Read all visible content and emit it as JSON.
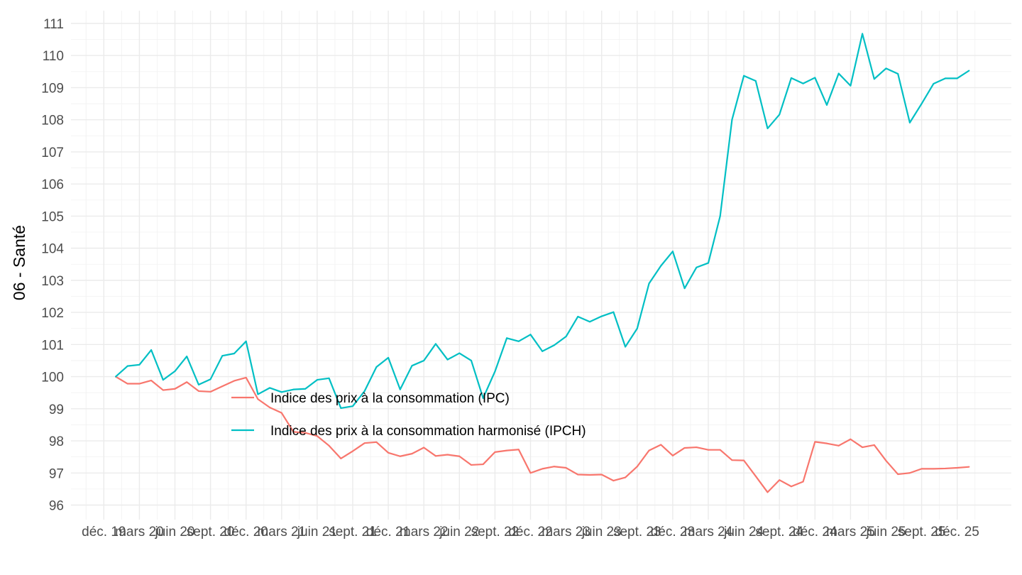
{
  "chart_data": {
    "type": "line",
    "title": "",
    "xlabel": "",
    "ylabel": "06 - Santé",
    "ylim": [
      96,
      111
    ],
    "grid": true,
    "legend_position": "inside-center-left",
    "x_tick_labels": [
      "déc. 19",
      "mars 20",
      "juin 20",
      "sept. 20",
      "déc. 20",
      "mars 21",
      "juin 21",
      "sept. 21",
      "déc. 21",
      "mars 22",
      "juin 22",
      "sept. 22",
      "déc. 22",
      "mars 23",
      "juin 23",
      "sept. 23",
      "déc. 23",
      "mars 24",
      "juin 24",
      "sept. 24",
      "déc. 24",
      "mars 25",
      "juin 25",
      "sept. 25",
      "déc. 25"
    ],
    "y_ticks": [
      96,
      97,
      98,
      99,
      100,
      101,
      102,
      103,
      104,
      105,
      106,
      107,
      108,
      109,
      110,
      111
    ],
    "x_months": [
      "2019-12",
      "2020-01",
      "2020-02",
      "2020-03",
      "2020-04",
      "2020-05",
      "2020-06",
      "2020-07",
      "2020-08",
      "2020-09",
      "2020-10",
      "2020-11",
      "2020-12",
      "2021-01",
      "2021-02",
      "2021-03",
      "2021-04",
      "2021-05",
      "2021-06",
      "2021-07",
      "2021-08",
      "2021-09",
      "2021-10",
      "2021-11",
      "2021-12",
      "2022-01",
      "2022-02",
      "2022-03",
      "2022-04",
      "2022-05",
      "2022-06",
      "2022-07",
      "2022-08",
      "2022-09",
      "2022-10",
      "2022-11",
      "2022-12",
      "2023-01",
      "2023-02",
      "2023-03",
      "2023-04",
      "2023-05",
      "2023-06",
      "2023-07",
      "2023-08",
      "2023-09",
      "2023-10",
      "2023-11",
      "2023-12",
      "2024-01",
      "2024-02",
      "2024-03",
      "2024-04",
      "2024-05",
      "2024-06",
      "2024-07",
      "2024-08",
      "2024-09",
      "2024-10",
      "2024-11",
      "2024-12",
      "2025-01",
      "2025-02",
      "2025-03",
      "2025-04",
      "2025-05",
      "2025-06",
      "2025-07",
      "2025-08",
      "2025-09",
      "2025-10",
      "2025-11",
      "2025-12"
    ],
    "series": [
      {
        "name": "Indice des prix à la consommation (IPC)",
        "color": "#F8766D",
        "values": [
          100.0,
          99.78,
          99.78,
          99.88,
          99.58,
          99.62,
          99.83,
          99.55,
          99.53,
          99.7,
          99.87,
          99.97,
          99.3,
          99.04,
          98.87,
          98.28,
          98.25,
          98.15,
          97.85,
          97.45,
          97.68,
          97.93,
          97.96,
          97.63,
          97.52,
          97.6,
          97.79,
          97.53,
          97.57,
          97.52,
          97.25,
          97.27,
          97.65,
          97.7,
          97.73,
          97.0,
          97.13,
          97.2,
          97.16,
          96.95,
          96.94,
          96.95,
          96.76,
          96.86,
          97.2,
          97.7,
          97.88,
          97.54,
          97.78,
          97.8,
          97.72,
          97.72,
          97.4,
          97.39,
          96.9,
          96.4,
          96.78,
          96.58,
          96.73,
          97.97,
          97.92,
          97.85,
          98.05,
          97.8,
          97.87,
          97.38,
          96.96,
          97.0,
          97.13,
          97.13,
          97.14,
          97.16,
          97.19
        ]
      },
      {
        "name": "Indice des prix à la consommation harmonisé (IPCH)",
        "color": "#00BFC4",
        "values": [
          100.0,
          100.33,
          100.37,
          100.83,
          99.9,
          100.17,
          100.63,
          99.75,
          99.92,
          100.65,
          100.72,
          101.1,
          99.45,
          99.65,
          99.52,
          99.6,
          99.62,
          99.9,
          99.95,
          99.02,
          99.08,
          99.55,
          100.3,
          100.59,
          99.6,
          100.34,
          100.5,
          101.02,
          100.53,
          100.73,
          100.5,
          99.33,
          100.16,
          101.2,
          101.1,
          101.31,
          100.79,
          100.98,
          101.25,
          101.87,
          101.71,
          101.88,
          102.01,
          100.93,
          101.5,
          102.9,
          103.45,
          103.9,
          102.75,
          103.4,
          103.54,
          105.0,
          108.0,
          109.37,
          109.21,
          107.73,
          108.16,
          109.3,
          109.13,
          109.31,
          108.46,
          109.44,
          109.06,
          110.68,
          109.27,
          109.6,
          109.43,
          107.91,
          108.5,
          109.12,
          109.29,
          109.29,
          109.53
        ]
      }
    ]
  }
}
